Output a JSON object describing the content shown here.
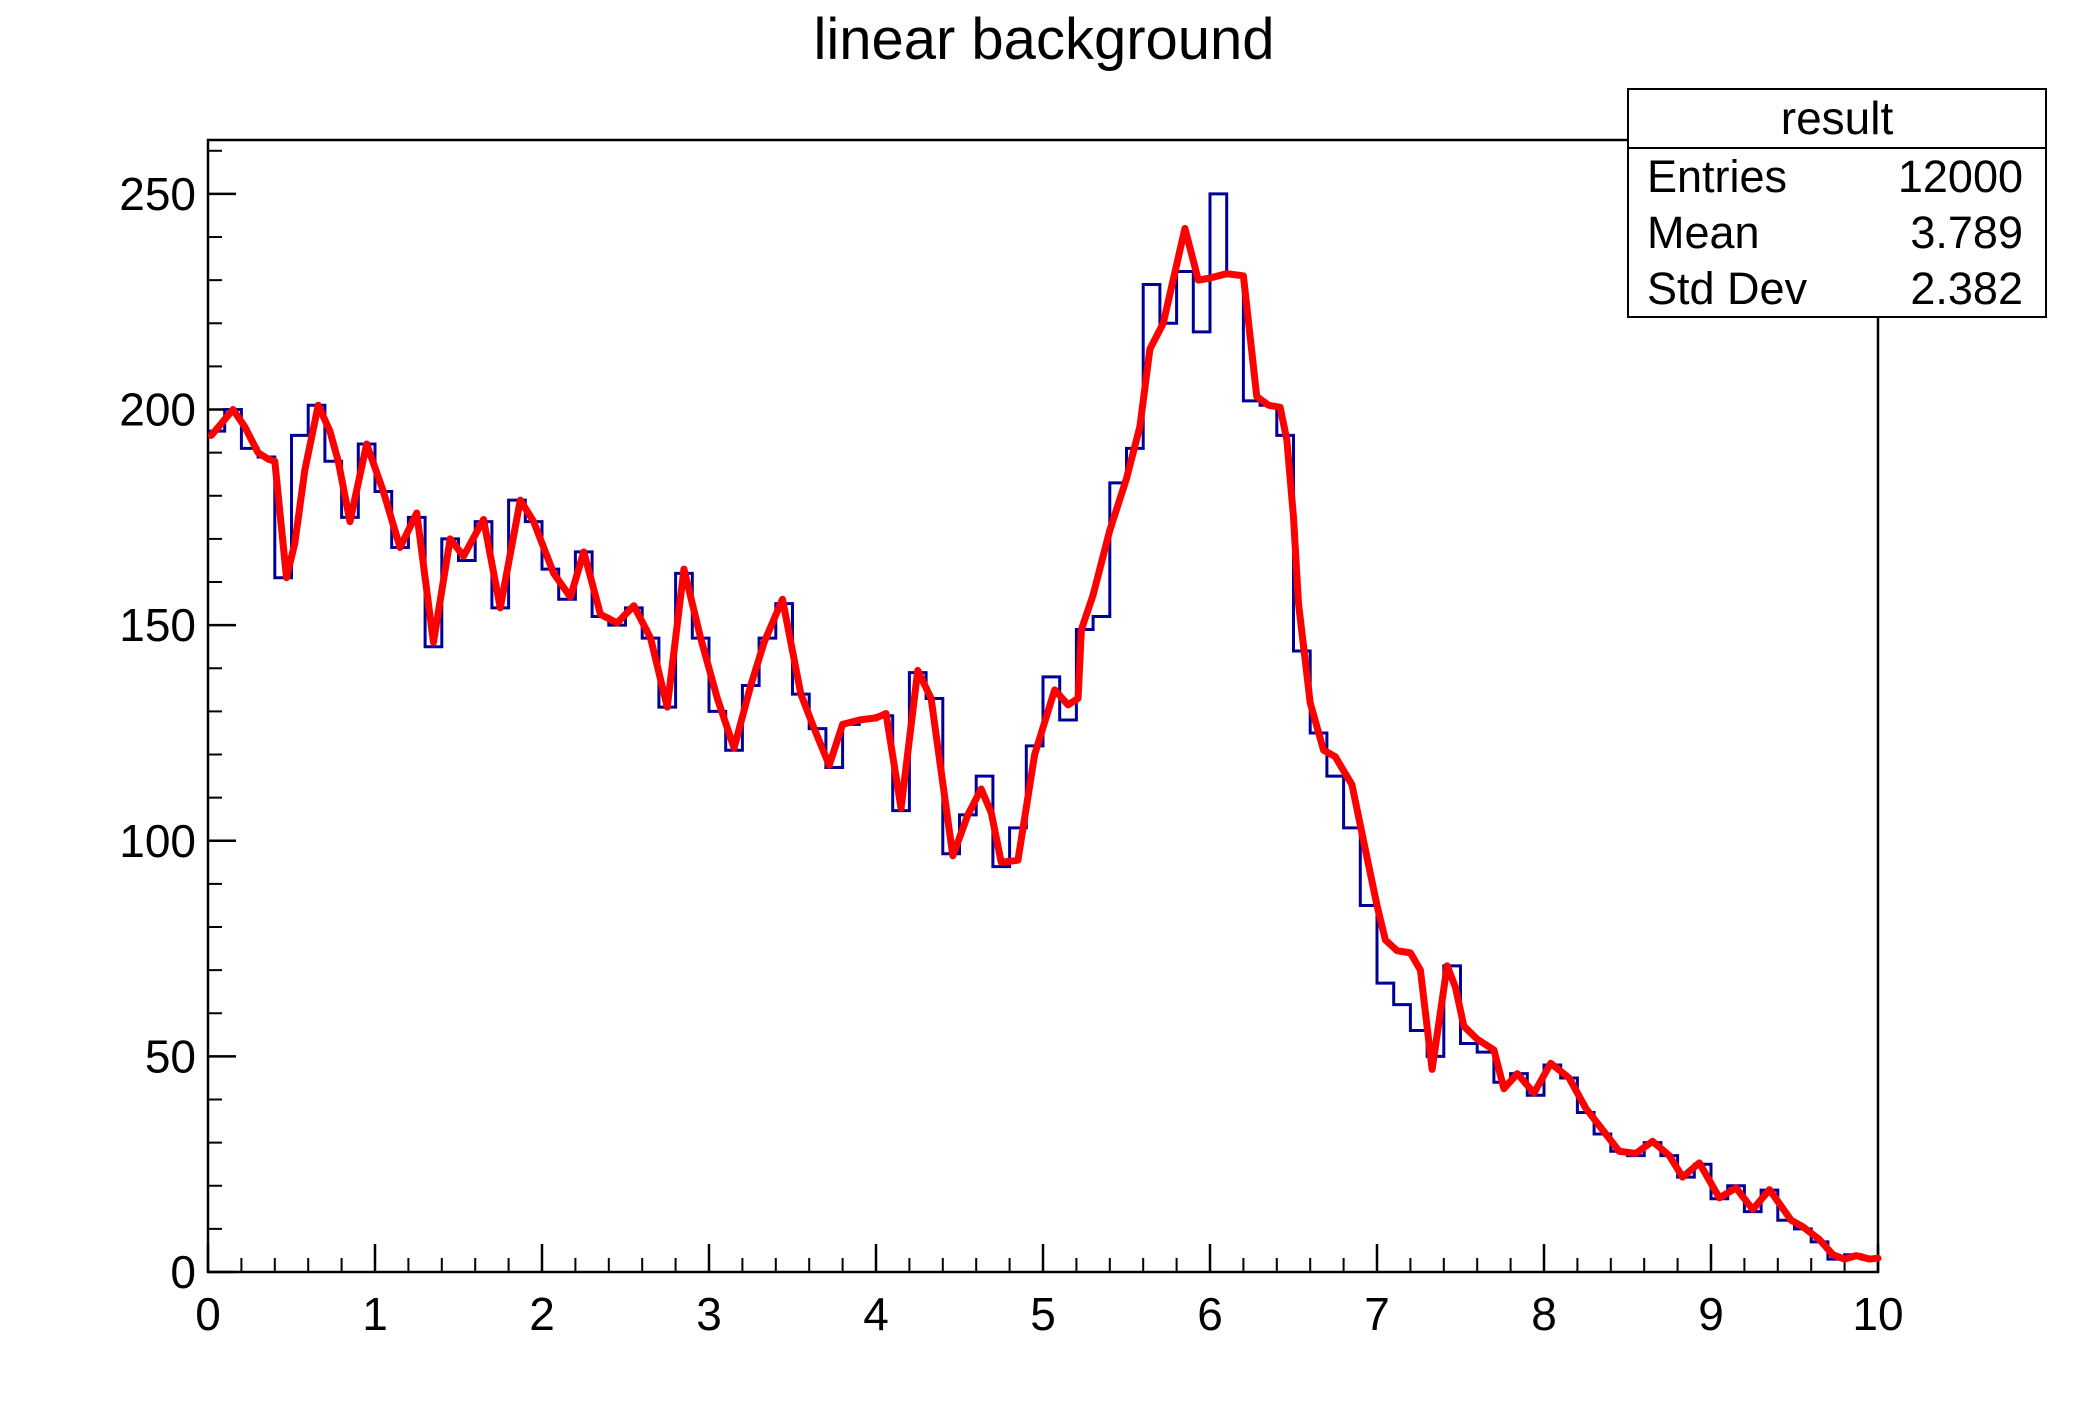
{
  "title": "linear background",
  "stats": {
    "title": "result",
    "rows": [
      {
        "label": "Entries",
        "value": "12000"
      },
      {
        "label": "Mean",
        "value": "3.789"
      },
      {
        "label": "Std Dev",
        "value": "2.382"
      }
    ]
  },
  "colors": {
    "histogram": "#000099",
    "curve": "#ff0000",
    "axis": "#000000",
    "background": "#ffffff"
  },
  "chart_data": {
    "type": "bar",
    "subtype": "histogram-step-with-smoothed-curve",
    "title": "linear background",
    "xlabel": "",
    "ylabel": "",
    "xlim": [
      0,
      10
    ],
    "ylim": [
      0,
      262.5
    ],
    "grid": false,
    "legend": "none",
    "x_tick_values": [
      0,
      1,
      2,
      3,
      4,
      5,
      6,
      7,
      8,
      9,
      10
    ],
    "x_tick_labels": [
      "0",
      "1",
      "2",
      "3",
      "4",
      "5",
      "6",
      "7",
      "8",
      "9",
      "10"
    ],
    "x_minor_step": 0.2,
    "y_tick_values": [
      0,
      50,
      100,
      150,
      200,
      250
    ],
    "y_tick_labels": [
      "0",
      "50",
      "100",
      "150",
      "200",
      "250"
    ],
    "y_minor_step": 10,
    "bin_start": 0,
    "bin_width": 0.1,
    "series": [
      {
        "name": "result-histogram",
        "style": "step",
        "color": "#000099",
        "values": [
          195,
          200,
          191,
          189,
          161,
          194,
          201,
          188,
          175,
          192,
          181,
          168,
          175,
          145,
          170,
          165,
          174,
          154,
          179,
          174,
          163,
          156,
          167,
          152,
          150,
          154,
          147,
          131,
          162,
          147,
          130,
          121,
          136,
          147,
          155,
          134,
          126,
          117,
          127,
          128,
          129,
          107,
          139,
          133,
          97,
          106,
          115,
          94,
          103,
          122,
          138,
          128,
          149,
          152,
          183,
          191,
          229,
          220,
          232,
          218,
          250,
          231,
          202,
          201,
          194,
          144,
          125,
          115,
          103,
          85,
          67,
          62,
          56,
          50,
          71,
          53,
          51,
          44,
          46,
          41,
          48,
          45,
          37,
          32,
          28,
          27,
          30,
          27,
          22,
          25,
          17,
          20,
          14,
          19,
          12,
          10,
          7,
          3,
          4,
          3
        ]
      },
      {
        "name": "smoothed-curve",
        "style": "line",
        "color": "#ff0000",
        "points": [
          [
            0.02,
            194
          ],
          [
            0.15,
            200
          ],
          [
            0.22,
            196
          ],
          [
            0.3,
            190
          ],
          [
            0.36,
            188.5
          ],
          [
            0.4,
            188
          ],
          [
            0.47,
            161
          ],
          [
            0.52,
            169
          ],
          [
            0.58,
            186
          ],
          [
            0.66,
            201
          ],
          [
            0.73,
            195
          ],
          [
            0.78,
            188
          ],
          [
            0.85,
            174
          ],
          [
            0.95,
            192
          ],
          [
            1.05,
            181
          ],
          [
            1.15,
            168
          ],
          [
            1.25,
            176
          ],
          [
            1.35,
            146
          ],
          [
            1.45,
            170
          ],
          [
            1.53,
            166
          ],
          [
            1.65,
            174.5
          ],
          [
            1.75,
            154
          ],
          [
            1.87,
            179
          ],
          [
            1.95,
            174
          ],
          [
            2.07,
            162
          ],
          [
            2.17,
            156.5
          ],
          [
            2.25,
            167
          ],
          [
            2.35,
            152.5
          ],
          [
            2.45,
            150.5
          ],
          [
            2.55,
            154.5
          ],
          [
            2.65,
            147
          ],
          [
            2.75,
            131
          ],
          [
            2.85,
            163
          ],
          [
            2.95,
            147
          ],
          [
            3.05,
            133
          ],
          [
            3.15,
            121.5
          ],
          [
            3.25,
            136
          ],
          [
            3.33,
            146
          ],
          [
            3.44,
            156
          ],
          [
            3.55,
            134
          ],
          [
            3.63,
            126
          ],
          [
            3.72,
            117.5
          ],
          [
            3.8,
            127
          ],
          [
            3.9,
            128
          ],
          [
            4.0,
            128.5
          ],
          [
            4.06,
            129.5
          ],
          [
            4.15,
            107.5
          ],
          [
            4.25,
            139.5
          ],
          [
            4.33,
            133
          ],
          [
            4.46,
            96.5
          ],
          [
            4.55,
            106
          ],
          [
            4.63,
            112
          ],
          [
            4.69,
            106.5
          ],
          [
            4.75,
            95
          ],
          [
            4.85,
            95.5
          ],
          [
            4.95,
            120
          ],
          [
            5.07,
            135
          ],
          [
            5.15,
            131.5
          ],
          [
            5.21,
            133
          ],
          [
            5.23,
            149
          ],
          [
            5.3,
            157
          ],
          [
            5.4,
            172
          ],
          [
            5.5,
            184
          ],
          [
            5.58,
            196
          ],
          [
            5.64,
            214
          ],
          [
            5.72,
            220
          ],
          [
            5.85,
            242
          ],
          [
            5.93,
            230
          ],
          [
            6.0,
            230.5
          ],
          [
            6.1,
            231.5
          ],
          [
            6.2,
            231
          ],
          [
            6.28,
            203
          ],
          [
            6.35,
            201
          ],
          [
            6.42,
            200.5
          ],
          [
            6.46,
            193
          ],
          [
            6.5,
            175
          ],
          [
            6.53,
            155
          ],
          [
            6.6,
            132
          ],
          [
            6.68,
            121
          ],
          [
            6.75,
            119.5
          ],
          [
            6.85,
            113
          ],
          [
            6.93,
            98
          ],
          [
            7.0,
            85
          ],
          [
            7.05,
            77
          ],
          [
            7.12,
            74.5
          ],
          [
            7.2,
            74
          ],
          [
            7.26,
            70
          ],
          [
            7.33,
            47
          ],
          [
            7.42,
            71
          ],
          [
            7.47,
            66
          ],
          [
            7.52,
            57
          ],
          [
            7.6,
            54
          ],
          [
            7.7,
            51.5
          ],
          [
            7.76,
            42.5
          ],
          [
            7.84,
            46
          ],
          [
            7.94,
            41.5
          ],
          [
            8.04,
            48.4
          ],
          [
            8.15,
            45
          ],
          [
            8.25,
            38
          ],
          [
            8.35,
            33
          ],
          [
            8.45,
            28
          ],
          [
            8.55,
            27.5
          ],
          [
            8.65,
            30.3
          ],
          [
            8.75,
            27
          ],
          [
            8.83,
            22
          ],
          [
            8.93,
            25.3
          ],
          [
            9.05,
            17.2
          ],
          [
            9.15,
            19.5
          ],
          [
            9.25,
            14.5
          ],
          [
            9.35,
            19.1
          ],
          [
            9.48,
            12
          ],
          [
            9.55,
            10.5
          ],
          [
            9.65,
            7.5
          ],
          [
            9.73,
            4
          ],
          [
            9.8,
            3
          ],
          [
            9.87,
            3.8
          ],
          [
            9.95,
            3
          ],
          [
            10.0,
            3.2
          ]
        ]
      }
    ]
  }
}
